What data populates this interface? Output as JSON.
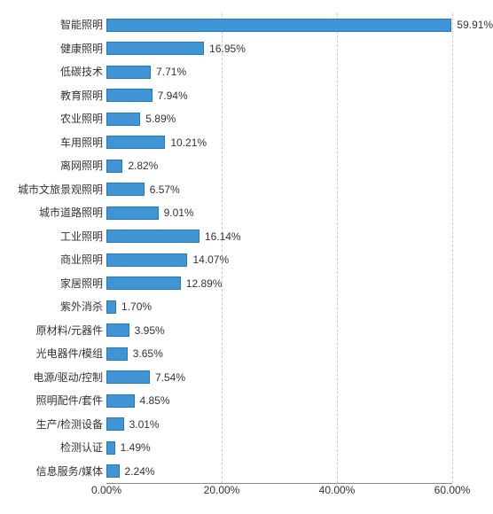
{
  "chart": {
    "type": "bar-horizontal",
    "background_color": "#ffffff",
    "grid_color": "#cccccc",
    "axis_color": "#888888",
    "bar_color": "#3f95d6",
    "bar_border_color": "#2a7ab8",
    "text_color": "#333333",
    "label_fontsize": 12,
    "value_fontsize": 12,
    "xlim": [
      0,
      60
    ],
    "xtick_step": 20,
    "xticks": [
      "0.00%",
      "20.00%",
      "40.00%",
      "60.00%"
    ],
    "value_suffix": "%",
    "categories": [
      "智能照明",
      "健康照明",
      "低碳技术",
      "教育照明",
      "农业照明",
      "车用照明",
      "离网照明",
      "城市文旅景观照明",
      "城市道路照明",
      "工业照明",
      "商业照明",
      "家居照明",
      "紫外消杀",
      "原材料/元器件",
      "光电器件/模组",
      "电源/驱动/控制",
      "照明配件/套件",
      "生产/检测设备",
      "检测认证",
      "信息服务/媒体"
    ],
    "values": [
      59.91,
      16.95,
      7.71,
      7.94,
      5.89,
      10.21,
      2.82,
      6.57,
      9.01,
      16.14,
      14.07,
      12.89,
      1.7,
      3.95,
      3.65,
      7.54,
      4.85,
      3.01,
      1.49,
      2.24
    ],
    "value_labels": [
      "59.91%",
      "16.95%",
      "7.71%",
      "7.94%",
      "5.89%",
      "10.21%",
      "2.82%",
      "6.57%",
      "9.01%",
      "16.14%",
      "14.07%",
      "12.89%",
      "1.70%",
      "3.95%",
      "3.65%",
      "7.54%",
      "4.85%",
      "3.01%",
      "1.49%",
      "2.24%"
    ]
  }
}
